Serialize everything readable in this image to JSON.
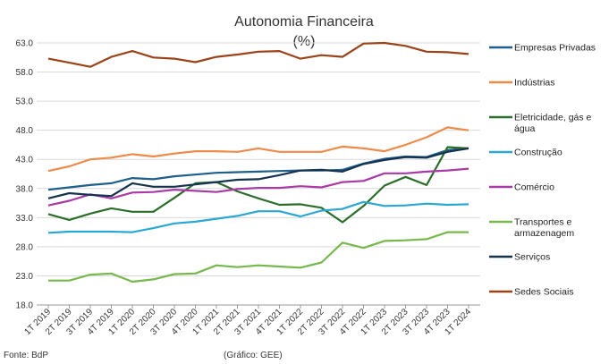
{
  "chart_data": {
    "type": "line",
    "title": "Autonomia Financeira",
    "subtitle": "(%)",
    "ylim": [
      18.0,
      63.0
    ],
    "yticks": [
      "18.0",
      "23.0",
      "28.0",
      "33.0",
      "38.0",
      "43.0",
      "48.0",
      "53.0",
      "58.0",
      "63.0"
    ],
    "ytick_values": [
      18,
      23,
      28,
      33,
      38,
      43,
      48,
      53,
      58,
      63
    ],
    "grid": true,
    "legend_position": "right",
    "categories": [
      "1T 2019",
      "2T 2019",
      "3T 2019",
      "4T 2019",
      "1T 2020",
      "2T 2020",
      "3T 2020",
      "4T 2020",
      "1T 2021",
      "2T 2021",
      "3T 2021",
      "4T 2021",
      "1T 2022",
      "2T 2022",
      "3T 2022",
      "4T 2022",
      "1T 2023",
      "2T 2023",
      "3T 2023",
      "4T 2023",
      "1T 2024"
    ],
    "series": [
      {
        "name": "Empresas Privadas",
        "color": "#1f5f8b",
        "values": [
          37.8,
          38.2,
          38.6,
          38.9,
          39.8,
          39.6,
          40.1,
          40.4,
          40.7,
          40.8,
          40.9,
          41.0,
          41.1,
          41.1,
          41.2,
          42.3,
          43.1,
          43.5,
          43.4,
          44.6,
          44.9
        ]
      },
      {
        "name": "Indústrias",
        "color": "#ee8a4a",
        "values": [
          41.0,
          41.8,
          43.0,
          43.3,
          43.9,
          43.5,
          44.0,
          44.4,
          44.4,
          44.3,
          44.9,
          44.3,
          44.3,
          44.3,
          45.2,
          44.9,
          44.4,
          45.5,
          46.8,
          48.5,
          48.0
        ]
      },
      {
        "name": "Eletricidade, gás e água",
        "color": "#2a6e2a",
        "values": [
          33.6,
          32.6,
          33.7,
          34.6,
          34.0,
          34.0,
          36.4,
          38.9,
          39.1,
          37.5,
          36.3,
          35.2,
          35.3,
          34.7,
          32.2,
          35.0,
          38.5,
          40.0,
          38.6,
          45.1,
          44.9
        ]
      },
      {
        "name": "Construção",
        "color": "#2aa7d3",
        "values": [
          30.4,
          30.6,
          30.6,
          30.6,
          30.5,
          31.2,
          32.0,
          32.3,
          32.8,
          33.3,
          34.1,
          34.1,
          33.2,
          34.2,
          34.5,
          35.7,
          35.0,
          35.1,
          35.4,
          35.2,
          35.3
        ]
      },
      {
        "name": "Comércio",
        "color": "#a83ba5",
        "values": [
          35.1,
          35.9,
          37.0,
          36.3,
          37.3,
          37.4,
          37.8,
          37.6,
          37.4,
          37.9,
          38.1,
          38.1,
          38.4,
          38.2,
          39.1,
          39.3,
          40.6,
          40.6,
          40.9,
          41.1,
          41.4
        ]
      },
      {
        "name": "Transportes e armazenagem",
        "color": "#76b84c",
        "values": [
          22.2,
          22.2,
          23.2,
          23.4,
          22.0,
          22.4,
          23.3,
          23.4,
          24.8,
          24.5,
          24.8,
          24.6,
          24.4,
          25.3,
          28.7,
          27.8,
          29.0,
          29.1,
          29.3,
          30.5,
          30.5
        ]
      },
      {
        "name": "Serviços",
        "color": "#15334f",
        "values": [
          36.3,
          37.2,
          36.9,
          36.7,
          38.9,
          38.3,
          38.3,
          38.7,
          39.1,
          39.5,
          39.6,
          40.3,
          41.1,
          41.2,
          40.9,
          42.2,
          42.9,
          43.4,
          43.3,
          44.3,
          44.9
        ]
      },
      {
        "name": "Sedes Sociais",
        "color": "#9c4218",
        "values": [
          60.3,
          59.6,
          58.9,
          60.6,
          61.6,
          60.5,
          60.3,
          59.7,
          60.6,
          61.0,
          61.5,
          61.6,
          60.3,
          60.9,
          60.6,
          62.9,
          63.0,
          62.5,
          61.5,
          61.4,
          61.1
        ]
      }
    ],
    "notes": {
      "source": "Fonte: BdP",
      "credit": "(Gráfico: GEE)"
    }
  }
}
